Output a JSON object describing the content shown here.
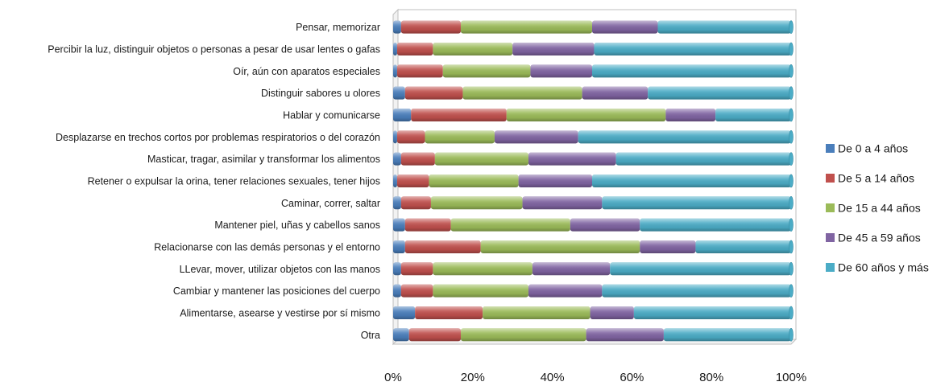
{
  "chart_data": {
    "type": "bar",
    "orientation": "horizontal",
    "stacked": "percent",
    "categories": [
      "Pensar, memorizar",
      "Percibir la luz, distinguir objetos o personas a pesar de usar lentes o gafas",
      "Oír, aún con aparatos especiales",
      "Distinguir sabores u olores",
      "Hablar y comunicarse",
      "Desplazarse en trechos cortos por problemas respiratorios o del corazón",
      "Masticar, tragar, asimilar y transformar los alimentos",
      "Retener o expulsar la orina, tener relaciones sexuales, tener hijos",
      "Caminar, correr, saltar",
      "Mantener piel, uñas y cabellos sanos",
      "Relacionarse con las demás personas y el entorno",
      "LLevar, mover, utilizar objetos con las manos",
      "Cambiar y mantener las posiciones del cuerpo",
      "Alimentarse, asearse y vestirse por sí mismo",
      "Otra"
    ],
    "series": [
      {
        "name": "De 0 a 4 años",
        "color": "#4a7ebb",
        "values": [
          2,
          1,
          1,
          3,
          4.5,
          1,
          2,
          1,
          2,
          3,
          3,
          2,
          2,
          5.5,
          4
        ]
      },
      {
        "name": "De 5 a 14 años",
        "color": "#c0504d",
        "values": [
          15,
          9,
          11.5,
          14.5,
          24,
          7,
          8.5,
          8,
          7.5,
          11.5,
          19,
          8,
          8,
          17,
          13
        ]
      },
      {
        "name": "De 15 a 44 años",
        "color": "#9bbb59",
        "values": [
          33,
          20,
          22,
          30,
          40,
          17.5,
          23.5,
          22.5,
          23,
          30,
          40,
          25,
          24,
          27,
          31.5
        ]
      },
      {
        "name": "De 45 a 59 años",
        "color": "#8064a2",
        "values": [
          16.5,
          20.5,
          15.5,
          16.5,
          12.5,
          21,
          22,
          18.5,
          20,
          17.5,
          14,
          19.5,
          18.5,
          11,
          19.5
        ]
      },
      {
        "name": "De 60 años y más",
        "color": "#4bacc6",
        "values": [
          33.5,
          49.5,
          50,
          36,
          19,
          53.5,
          44,
          50,
          47.5,
          38,
          24,
          45.5,
          47.5,
          39.5,
          32
        ]
      }
    ],
    "xticks": [
      "0%",
      "20%",
      "40%",
      "60%",
      "80%",
      "100%"
    ],
    "xlim": [
      0,
      100
    ],
    "title": "",
    "xlabel": "",
    "ylabel": "",
    "grid": false,
    "legend": "right"
  }
}
